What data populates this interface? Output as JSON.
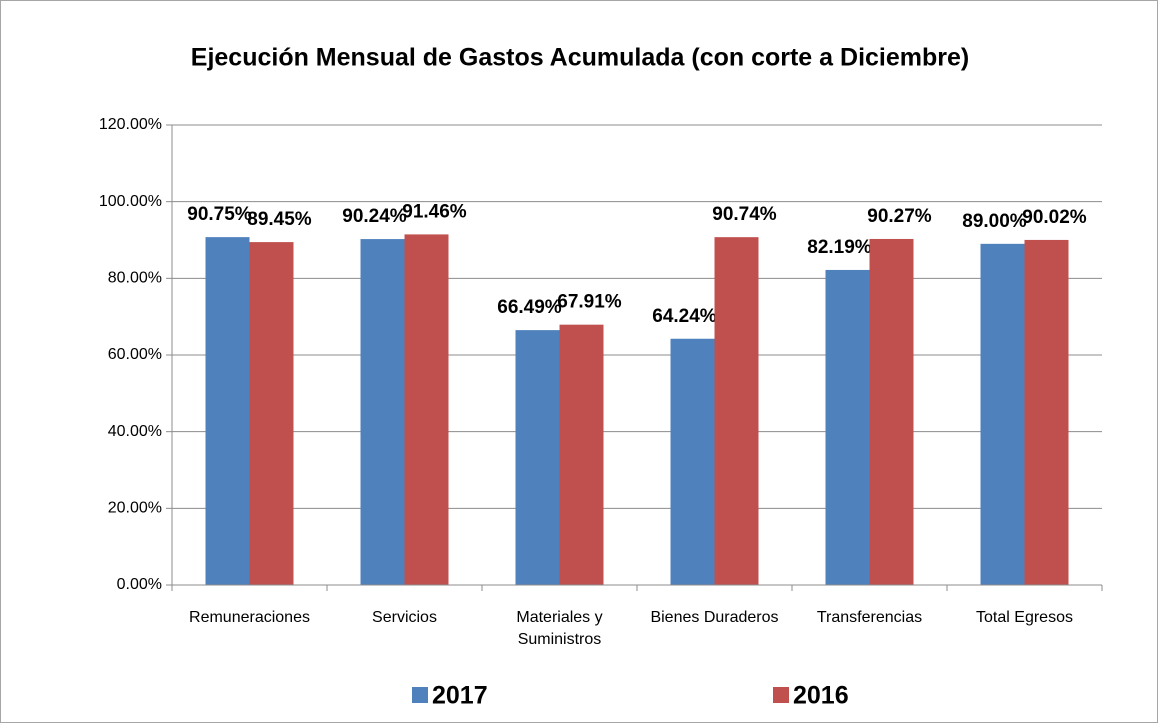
{
  "chart_data": {
    "type": "bar",
    "title": "Ejecución Mensual de Gastos Acumulada (con corte a Diciembre)",
    "categories": [
      "Remuneraciones",
      "Servicios",
      "Materiales y Suministros",
      "Bienes Duraderos",
      "Transferencias",
      "Total Egresos"
    ],
    "series": [
      {
        "name": "2017",
        "color": "#4f81bd",
        "values": [
          90.75,
          90.24,
          66.49,
          64.24,
          82.19,
          89.0
        ],
        "value_labels": [
          "90.75%",
          "90.24%",
          "66.49%",
          "64.24%",
          "82.19%",
          "89.00%"
        ]
      },
      {
        "name": "2016",
        "color": "#c0504d",
        "values": [
          89.45,
          91.46,
          67.91,
          90.74,
          90.27,
          90.02
        ],
        "value_labels": [
          "89.45%",
          "91.46%",
          "67.91%",
          "90.74%",
          "90.27%",
          "90.02%"
        ]
      }
    ],
    "ylim": [
      0,
      120
    ],
    "yticks": [
      {
        "value": 0,
        "label": "0.00%"
      },
      {
        "value": 20,
        "label": "20.00%"
      },
      {
        "value": 40,
        "label": "40.00%"
      },
      {
        "value": 60,
        "label": "60.00%"
      },
      {
        "value": 80,
        "label": "80.00%"
      },
      {
        "value": 100,
        "label": "100.00%"
      },
      {
        "value": 120,
        "label": "120.00%"
      }
    ],
    "grid": true,
    "legend": "bottom"
  }
}
